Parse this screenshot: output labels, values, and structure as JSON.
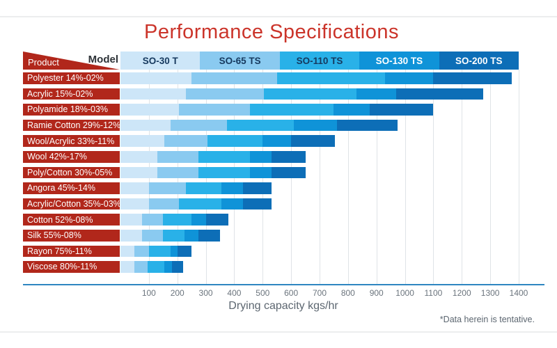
{
  "page": {
    "title": "Performance Specifications",
    "footnote": "*Data herein is tentative."
  },
  "chart_data": {
    "type": "bar",
    "orientation": "horizontal-overlapped",
    "title": "Performance Specifications",
    "xlabel": "Drying capacity kgs/hr",
    "xlim": [
      0,
      1400
    ],
    "xticks": [
      100,
      200,
      300,
      400,
      500,
      600,
      700,
      800,
      900,
      1000,
      1100,
      1200,
      1300,
      1400
    ],
    "grid": true,
    "legend_position": "top",
    "header": {
      "product_label": "Product",
      "model_label": "Model"
    },
    "series": [
      {
        "name": "SO-30 T",
        "color": "#cde6f8",
        "text_color": "#16395e"
      },
      {
        "name": "SO-65 TS",
        "color": "#8acaf0",
        "text_color": "#16395e"
      },
      {
        "name": "SO-110 TS",
        "color": "#29b1e8",
        "text_color": "#16395e"
      },
      {
        "name": "SO-130 TS",
        "color": "#0f93d8",
        "text_color": "#ffffff"
      },
      {
        "name": "SO-200 TS",
        "color": "#0d6eb7",
        "text_color": "#ffffff"
      }
    ],
    "categories": [
      "Polyester 14%-02%",
      "Acrylic 15%-02%",
      "Polyamide 18%-03%",
      "Ramie Cotton 29%-12%",
      "Wool/Acrylic 33%-11%",
      "Wool 42%-17%",
      "Poly/Cotton 30%-05%",
      "Angora 45%-14%",
      "Acrylic/Cotton 35%-03%",
      "Cotton 52%-08%",
      "Silk 55%-08%",
      "Rayon 75%-11%",
      "Viscose 80%-11%"
    ],
    "values_by_model_kgs_hr": [
      [
        250,
        550,
        930,
        1100,
        1375
      ],
      [
        230,
        505,
        830,
        970,
        1275
      ],
      [
        205,
        455,
        750,
        875,
        1100
      ],
      [
        175,
        375,
        610,
        760,
        975
      ],
      [
        155,
        305,
        500,
        600,
        755
      ],
      [
        130,
        275,
        455,
        530,
        650
      ],
      [
        130,
        275,
        455,
        530,
        650
      ],
      [
        100,
        230,
        355,
        430,
        530
      ],
      [
        100,
        205,
        355,
        430,
        530
      ],
      [
        75,
        150,
        250,
        300,
        380
      ],
      [
        75,
        150,
        225,
        275,
        350
      ],
      [
        50,
        100,
        175,
        200,
        250
      ],
      [
        50,
        95,
        155,
        180,
        220
      ]
    ],
    "colors": {
      "row_label_bg": "#b1271b",
      "title": "#cb342a",
      "gridline": "#dfe3e7",
      "axis_line": "#2e86c1",
      "tick_text": "#6b747d"
    }
  }
}
